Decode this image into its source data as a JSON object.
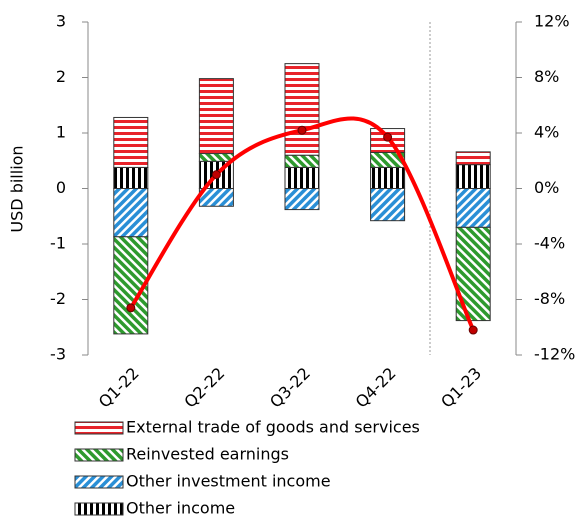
{
  "chart_data": {
    "type": "bar",
    "ylabel": "USD billion",
    "categories": [
      "Q1-22",
      "Q2-22",
      "Q3-22",
      "Q4-22",
      "Q1-23"
    ],
    "series": [
      {
        "name": "External trade of goods and services",
        "color": "#e8232a",
        "values": [
          0.9,
          1.35,
          1.65,
          0.43,
          0.23
        ]
      },
      {
        "name": "Reinvested earnings",
        "color": "#2e9a2e",
        "values": [
          -1.75,
          0.14,
          0.22,
          0.27,
          -1.68
        ]
      },
      {
        "name": "Other investment income",
        "color": "#2a8fd6",
        "values": [
          -0.87,
          -0.32,
          -0.38,
          -0.58,
          -0.7
        ]
      },
      {
        "name": "Other income",
        "color": "#000000",
        "values": [
          0.38,
          0.49,
          0.38,
          0.38,
          0.43
        ]
      }
    ],
    "line": {
      "type": "line",
      "axis": "y2",
      "color": "#ff0000",
      "marker_color": "#c00000",
      "values": [
        -8.6,
        1.0,
        4.2,
        3.7,
        -10.2
      ]
    },
    "ylim": [
      -3,
      3
    ],
    "yticks": [
      -3,
      -2,
      -1,
      0,
      1,
      2,
      3
    ],
    "y2lim": [
      -12,
      12
    ],
    "y2ticks": [
      {
        "value": -12,
        "label": "-12%"
      },
      {
        "value": -8,
        "label": "-8%"
      },
      {
        "value": -4,
        "label": "-4%"
      },
      {
        "value": 0,
        "label": "0%"
      },
      {
        "value": 4,
        "label": "4%"
      },
      {
        "value": 8,
        "label": "8%"
      },
      {
        "value": 12,
        "label": "12%"
      }
    ],
    "grid": false
  }
}
